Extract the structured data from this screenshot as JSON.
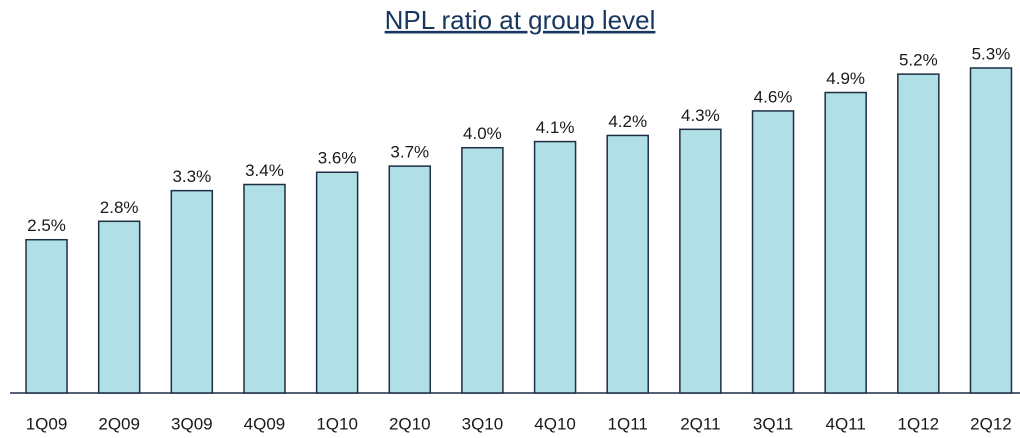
{
  "chart_data": {
    "type": "bar",
    "title": "NPL ratio at group level",
    "categories": [
      "1Q09",
      "2Q09",
      "3Q09",
      "4Q09",
      "1Q10",
      "2Q10",
      "3Q10",
      "4Q10",
      "1Q11",
      "2Q11",
      "3Q11",
      "4Q11",
      "1Q12",
      "2Q12"
    ],
    "values": [
      2.5,
      2.8,
      3.3,
      3.4,
      3.6,
      3.7,
      4.0,
      4.1,
      4.2,
      4.3,
      4.6,
      4.9,
      5.2,
      5.3
    ],
    "value_labels": [
      "2.5%",
      "2.8%",
      "3.3%",
      "3.4%",
      "3.6%",
      "3.7%",
      "4.0%",
      "4.1%",
      "4.2%",
      "4.3%",
      "4.6%",
      "4.9%",
      "5.2%",
      "5.3%"
    ],
    "color": "#b0dfe5"
  }
}
